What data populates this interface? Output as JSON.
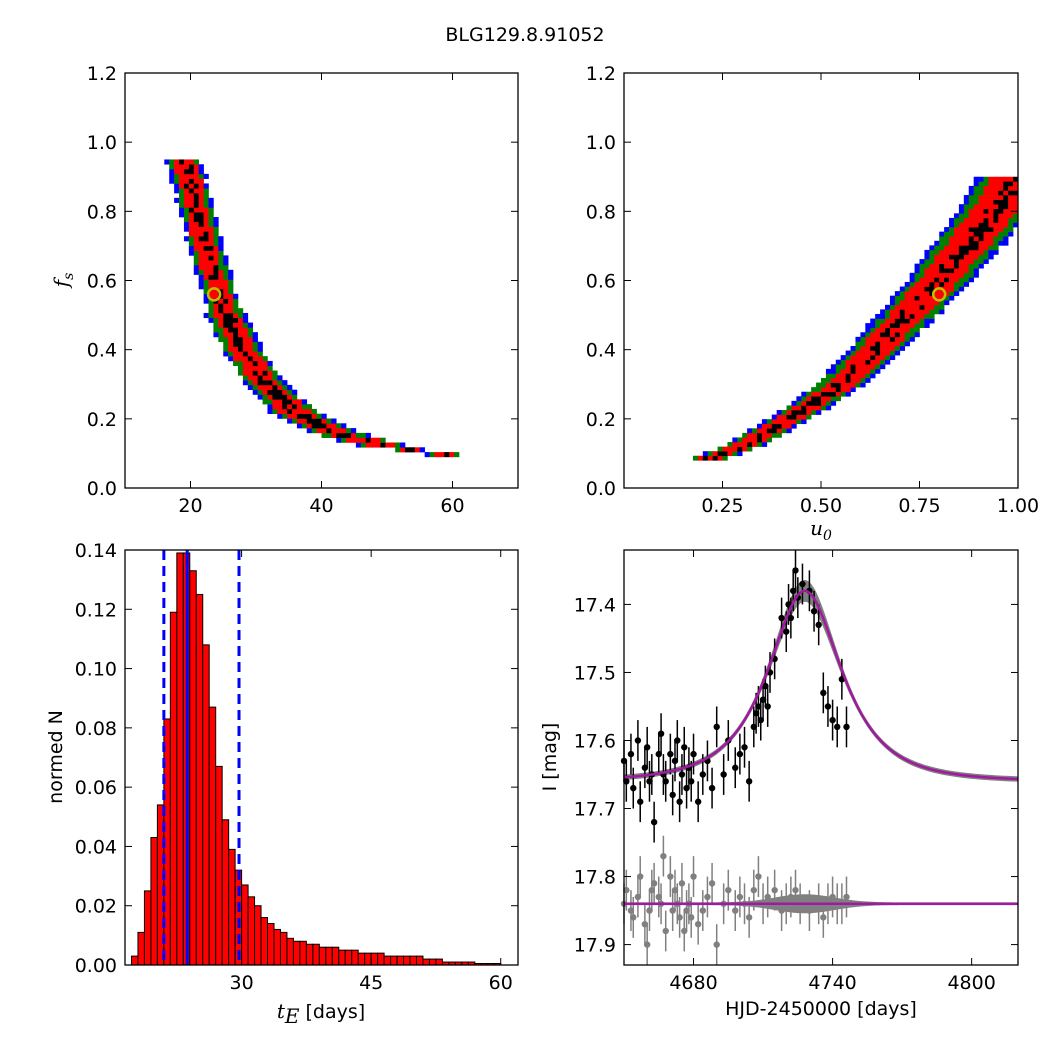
{
  "figure": {
    "title": "BLG129.8.91052"
  },
  "colors": {
    "level1": "#0000ff",
    "level2": "#008000",
    "level3": "#ff0000",
    "level4": "#000000",
    "marker": "#bfbf00",
    "hist_fill": "#ff0000",
    "best": "#0000ff",
    "model": "#a01aa0",
    "model_band": "#808080",
    "data": "#000000",
    "resid": "#808080"
  },
  "chart_data": [
    {
      "id": "tE_fs",
      "type": "heatmap",
      "title": "",
      "xlabel": "",
      "ylabel": "f_s",
      "ylabel_main": "f",
      "ylabel_sub": "s",
      "xlim": [
        10,
        70
      ],
      "ylim": [
        0,
        1.2
      ],
      "xticks": [
        "20",
        "40",
        "60"
      ],
      "yticks": [
        "0.0",
        "0.2",
        "0.4",
        "0.6",
        "0.8",
        "1.0",
        "1.2"
      ],
      "curve_fs": [
        0.09,
        0.12,
        0.16,
        0.22,
        0.3,
        0.4,
        0.5,
        0.6,
        0.7,
        0.8,
        0.9,
        0.95
      ],
      "curve_x": [
        61,
        50,
        42,
        36,
        31.5,
        28,
        25.5,
        23.8,
        22.3,
        21,
        19.7,
        19
      ],
      "best_fit": {
        "x": 23.6,
        "fs": 0.56
      },
      "levels": [
        "1",
        "2",
        "3",
        "4"
      ]
    },
    {
      "id": "u0_fs",
      "type": "heatmap",
      "title": "",
      "xlabel": "u_0",
      "xlabel_main": "u",
      "xlabel_sub": "0",
      "ylabel": "",
      "xlim": [
        0,
        1.0
      ],
      "ylim": [
        0,
        1.2
      ],
      "xticks": [
        "0.25",
        "0.50",
        "0.75",
        "1.00"
      ],
      "yticks": [
        "0.0",
        "0.2",
        "0.4",
        "0.6",
        "0.8",
        "1.0",
        "1.2"
      ],
      "curve_fs": [
        0.08,
        0.12,
        0.2,
        0.3,
        0.4,
        0.5,
        0.6,
        0.7,
        0.8,
        0.9
      ],
      "curve_x": [
        0.2,
        0.3,
        0.42,
        0.55,
        0.64,
        0.72,
        0.8,
        0.87,
        0.94,
        1.0
      ],
      "best_fit": {
        "x": 0.8,
        "fs": 0.56
      },
      "levels": [
        "1",
        "2",
        "3",
        "4"
      ]
    },
    {
      "id": "tE_hist",
      "type": "bar",
      "title": "",
      "xlabel": "t_E [days]",
      "xlabel_main": "t",
      "xlabel_sub": "E",
      "xlabel_rest": " [days]",
      "ylabel": "normed N",
      "xlim": [
        16.5,
        62
      ],
      "ylim": [
        0,
        0.14
      ],
      "xticks": [
        "30",
        "45",
        "60"
      ],
      "yticks": [
        "0.00",
        "0.02",
        "0.04",
        "0.06",
        "0.08",
        "0.10",
        "0.12",
        "0.14"
      ],
      "bin_start": 17.25,
      "bin_width": 0.75,
      "values": [
        0.003,
        0.011,
        0.025,
        0.043,
        0.054,
        0.083,
        0.119,
        0.139,
        0.139,
        0.133,
        0.125,
        0.108,
        0.087,
        0.067,
        0.049,
        0.039,
        0.032,
        0.027,
        0.023,
        0.02,
        0.016,
        0.014,
        0.012,
        0.011,
        0.009,
        0.008,
        0.008,
        0.007,
        0.007,
        0.006,
        0.006,
        0.006,
        0.005,
        0.005,
        0.005,
        0.004,
        0.004,
        0.004,
        0.004,
        0.003,
        0.003,
        0.003,
        0.003,
        0.003,
        0.003,
        0.002,
        0.002,
        0.002,
        0.001,
        0.001,
        0.001,
        0.001,
        0.001,
        0.0005,
        0.0005,
        0.0005,
        0.0005
      ],
      "best": 23.7,
      "lower": 21.0,
      "upper": 29.7
    },
    {
      "id": "lightcurve",
      "type": "scatter",
      "title": "",
      "xlabel": "HJD-2450000 [days]",
      "ylabel": "I [mag]",
      "xlim": [
        4650,
        4820
      ],
      "ylim": [
        17.93,
        17.32
      ],
      "xticks": [
        "4680",
        "4740",
        "4800"
      ],
      "yticks": [
        "17.4",
        "17.5",
        "17.6",
        "17.7",
        "17.8",
        "17.9"
      ],
      "model": {
        "t0": 4728,
        "baseline": 17.66,
        "peak": 17.38,
        "tE": 23.7,
        "u0": 0.8,
        "fs": 0.56
      },
      "residual_baseline": 17.84,
      "points": [
        [
          4650,
          17.63,
          0.03
        ],
        [
          4651,
          17.66,
          0.03
        ],
        [
          4653,
          17.62,
          0.03
        ],
        [
          4654,
          17.67,
          0.03
        ],
        [
          4656,
          17.6,
          0.03
        ],
        [
          4657,
          17.69,
          0.03
        ],
        [
          4659,
          17.64,
          0.03
        ],
        [
          4660,
          17.61,
          0.03
        ],
        [
          4661,
          17.66,
          0.03
        ],
        [
          4662,
          17.65,
          0.03
        ],
        [
          4663,
          17.72,
          0.03
        ],
        [
          4665,
          17.62,
          0.03
        ],
        [
          4666,
          17.59,
          0.03
        ],
        [
          4667,
          17.65,
          0.03
        ],
        [
          4668,
          17.66,
          0.03
        ],
        [
          4670,
          17.62,
          0.03
        ],
        [
          4671,
          17.68,
          0.03
        ],
        [
          4672,
          17.63,
          0.03
        ],
        [
          4673,
          17.6,
          0.03
        ],
        [
          4674,
          17.69,
          0.03
        ],
        [
          4675,
          17.65,
          0.03
        ],
        [
          4676,
          17.61,
          0.03
        ],
        [
          4677,
          17.67,
          0.03
        ],
        [
          4678,
          17.64,
          0.03
        ],
        [
          4679,
          17.66,
          0.03
        ],
        [
          4680,
          17.62,
          0.03
        ],
        [
          4682,
          17.69,
          0.03
        ],
        [
          4684,
          17.65,
          0.03
        ],
        [
          4686,
          17.63,
          0.03
        ],
        [
          4688,
          17.67,
          0.03
        ],
        [
          4690,
          17.58,
          0.03
        ],
        [
          4693,
          17.65,
          0.03
        ],
        [
          4695,
          17.6,
          0.03
        ],
        [
          4698,
          17.64,
          0.03
        ],
        [
          4700,
          17.62,
          0.03
        ],
        [
          4702,
          17.61,
          0.03
        ],
        [
          4704,
          17.66,
          0.03
        ],
        [
          4706,
          17.58,
          0.03
        ],
        [
          4707,
          17.56,
          0.03
        ],
        [
          4708,
          17.55,
          0.03
        ],
        [
          4709,
          17.57,
          0.03
        ],
        [
          4710,
          17.54,
          0.03
        ],
        [
          4711,
          17.52,
          0.03
        ],
        [
          4712,
          17.55,
          0.03
        ],
        [
          4713,
          17.5,
          0.03
        ],
        [
          4715,
          17.48,
          0.03
        ],
        [
          4718,
          17.42,
          0.03
        ],
        [
          4720,
          17.44,
          0.03
        ],
        [
          4721,
          17.4,
          0.03
        ],
        [
          4722,
          17.42,
          0.03
        ],
        [
          4723,
          17.38,
          0.03
        ],
        [
          4724,
          17.35,
          0.03
        ],
        [
          4725,
          17.39,
          0.03
        ],
        [
          4727,
          17.37,
          0.03
        ],
        [
          4730,
          17.38,
          0.03
        ],
        [
          4732,
          17.41,
          0.03
        ],
        [
          4734,
          17.43,
          0.03
        ],
        [
          4736,
          17.53,
          0.03
        ],
        [
          4738,
          17.55,
          0.03
        ],
        [
          4740,
          17.57,
          0.03
        ],
        [
          4742,
          17.58,
          0.03
        ],
        [
          4744,
          17.51,
          0.03
        ],
        [
          4746,
          17.58,
          0.03
        ]
      ],
      "residuals": [
        [
          4650,
          17.84,
          0.03
        ],
        [
          4651,
          17.82,
          0.03
        ],
        [
          4653,
          17.85,
          0.03
        ],
        [
          4654,
          17.86,
          0.03
        ],
        [
          4656,
          17.83,
          0.03
        ],
        [
          4657,
          17.8,
          0.03
        ],
        [
          4659,
          17.87,
          0.03
        ],
        [
          4660,
          17.9,
          0.03
        ],
        [
          4661,
          17.85,
          0.03
        ],
        [
          4662,
          17.82,
          0.03
        ],
        [
          4663,
          17.81,
          0.03
        ],
        [
          4665,
          17.83,
          0.03
        ],
        [
          4666,
          17.84,
          0.03
        ],
        [
          4667,
          17.77,
          0.03
        ],
        [
          4668,
          17.88,
          0.03
        ],
        [
          4670,
          17.8,
          0.03
        ],
        [
          4671,
          17.85,
          0.03
        ],
        [
          4672,
          17.82,
          0.03
        ],
        [
          4673,
          17.84,
          0.03
        ],
        [
          4674,
          17.86,
          0.03
        ],
        [
          4675,
          17.81,
          0.03
        ],
        [
          4676,
          17.88,
          0.03
        ],
        [
          4677,
          17.85,
          0.03
        ],
        [
          4678,
          17.84,
          0.03
        ],
        [
          4679,
          17.86,
          0.03
        ],
        [
          4680,
          17.8,
          0.03
        ],
        [
          4682,
          17.87,
          0.03
        ],
        [
          4684,
          17.85,
          0.03
        ],
        [
          4686,
          17.83,
          0.03
        ],
        [
          4688,
          17.81,
          0.03
        ],
        [
          4690,
          17.9,
          0.03
        ],
        [
          4693,
          17.84,
          0.03
        ],
        [
          4695,
          17.82,
          0.03
        ],
        [
          4698,
          17.85,
          0.03
        ],
        [
          4700,
          17.83,
          0.03
        ],
        [
          4702,
          17.84,
          0.03
        ],
        [
          4704,
          17.86,
          0.03
        ],
        [
          4706,
          17.82,
          0.03
        ],
        [
          4708,
          17.8,
          0.03
        ],
        [
          4710,
          17.84,
          0.03
        ],
        [
          4712,
          17.83,
          0.03
        ],
        [
          4715,
          17.82,
          0.03
        ],
        [
          4718,
          17.85,
          0.03
        ],
        [
          4720,
          17.84,
          0.03
        ],
        [
          4722,
          17.83,
          0.03
        ],
        [
          4724,
          17.82,
          0.03
        ],
        [
          4726,
          17.84,
          0.03
        ],
        [
          4730,
          17.85,
          0.03
        ],
        [
          4734,
          17.84,
          0.03
        ],
        [
          4736,
          17.86,
          0.03
        ],
        [
          4738,
          17.84,
          0.03
        ],
        [
          4740,
          17.83,
          0.03
        ],
        [
          4742,
          17.84,
          0.03
        ],
        [
          4744,
          17.84,
          0.03
        ],
        [
          4746,
          17.83,
          0.03
        ]
      ]
    }
  ]
}
